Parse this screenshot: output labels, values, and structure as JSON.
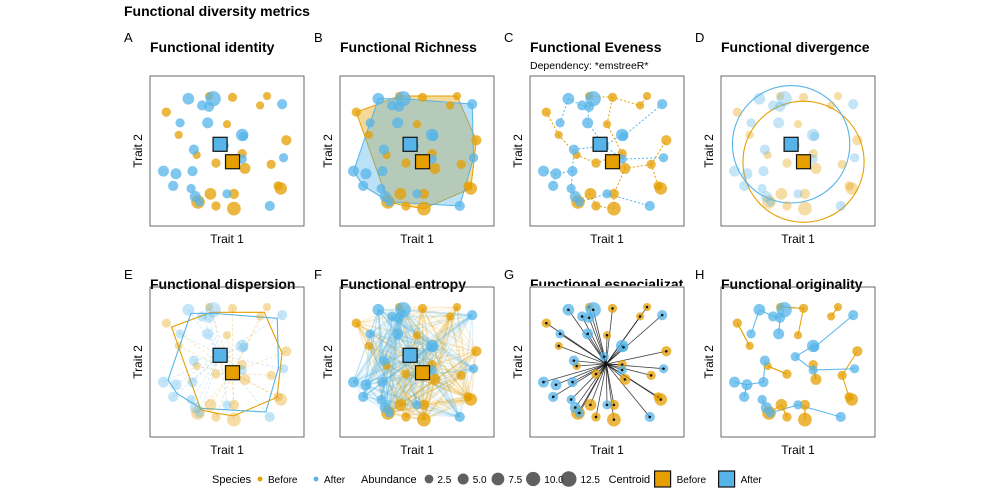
{
  "title": "Functional diversity metrics",
  "colors": {
    "before": "#E69F00",
    "after": "#56B4E9",
    "centroid_before": "#E69F00",
    "centroid_after": "#56B4E9",
    "frame": "#444444",
    "tree_line": "#111111",
    "before_stroke": "#C08400",
    "after_stroke": "#2D7FB8"
  },
  "chart_data": {
    "type": "scatter",
    "shared_axes": {
      "xlabel": "Trait 1",
      "ylabel": "Trait 2",
      "xlim": [
        0,
        10
      ],
      "ylim": [
        0,
        10
      ],
      "grid": false
    },
    "species": {
      "before": [
        {
          "x": 0.6,
          "y": 7.9,
          "a": 3
        },
        {
          "x": 3.7,
          "y": 9.1,
          "a": 2
        },
        {
          "x": 5.0,
          "y": 7.0,
          "a": 2
        },
        {
          "x": 5.4,
          "y": 9.0,
          "a": 3
        },
        {
          "x": 7.4,
          "y": 8.4,
          "a": 2
        },
        {
          "x": 7.9,
          "y": 9.1,
          "a": 2
        },
        {
          "x": 9.3,
          "y": 5.8,
          "a": 4
        },
        {
          "x": 1.5,
          "y": 6.2,
          "a": 2
        },
        {
          "x": 2.8,
          "y": 4.7,
          "a": 2
        },
        {
          "x": 4.2,
          "y": 4.1,
          "a": 3
        },
        {
          "x": 6.1,
          "y": 4.8,
          "a": 3
        },
        {
          "x": 6.3,
          "y": 3.7,
          "a": 5
        },
        {
          "x": 8.2,
          "y": 4.0,
          "a": 3
        },
        {
          "x": 8.7,
          "y": 2.4,
          "a": 3
        },
        {
          "x": 8.9,
          "y": 2.2,
          "a": 7
        },
        {
          "x": 3.8,
          "y": 1.8,
          "a": 6
        },
        {
          "x": 2.9,
          "y": 1.2,
          "a": 9
        },
        {
          "x": 4.2,
          "y": 0.9,
          "a": 3
        },
        {
          "x": 5.5,
          "y": 1.8,
          "a": 4
        },
        {
          "x": 5.5,
          "y": 0.7,
          "a": 9
        }
      ],
      "after": [
        {
          "x": 2.2,
          "y": 8.9,
          "a": 6
        },
        {
          "x": 3.2,
          "y": 8.4,
          "a": 4
        },
        {
          "x": 4.0,
          "y": 8.9,
          "a": 12
        },
        {
          "x": 3.7,
          "y": 8.3,
          "a": 4
        },
        {
          "x": 9.0,
          "y": 8.5,
          "a": 4
        },
        {
          "x": 1.6,
          "y": 7.1,
          "a": 3
        },
        {
          "x": 3.6,
          "y": 7.1,
          "a": 5
        },
        {
          "x": 6.1,
          "y": 6.2,
          "a": 7
        },
        {
          "x": 6.2,
          "y": 6.1,
          "a": 3
        },
        {
          "x": 2.6,
          "y": 5.1,
          "a": 4
        },
        {
          "x": 4.8,
          "y": 5.4,
          "a": 3
        },
        {
          "x": 6.1,
          "y": 4.4,
          "a": 3
        },
        {
          "x": 9.1,
          "y": 4.5,
          "a": 3
        },
        {
          "x": 2.5,
          "y": 3.5,
          "a": 4
        },
        {
          "x": 0.4,
          "y": 3.5,
          "a": 5
        },
        {
          "x": 1.3,
          "y": 3.3,
          "a": 5
        },
        {
          "x": 1.1,
          "y": 2.4,
          "a": 4
        },
        {
          "x": 2.4,
          "y": 2.2,
          "a": 3
        },
        {
          "x": 2.7,
          "y": 1.6,
          "a": 5
        },
        {
          "x": 8.1,
          "y": 0.9,
          "a": 4
        },
        {
          "x": 3.0,
          "y": 1.2,
          "a": 3
        },
        {
          "x": 5.0,
          "y": 1.8,
          "a": 3
        }
      ]
    },
    "centroids": {
      "before": {
        "x": 5.4,
        "y": 4.2
      },
      "after": {
        "x": 4.5,
        "y": 5.5
      }
    },
    "panels": [
      {
        "letter": "A",
        "title": "Functional identity",
        "subtitle": "",
        "type": "scatter"
      },
      {
        "letter": "B",
        "title": "Functional Richness",
        "subtitle": "",
        "type": "convex-hull"
      },
      {
        "letter": "C",
        "title": "Functional Eveness",
        "subtitle": "Dependency: *emstreeR*",
        "type": "minimum-spanning-tree"
      },
      {
        "letter": "D",
        "title": "Functional divergence",
        "subtitle": "",
        "type": "distance-circle"
      },
      {
        "letter": "E",
        "title": "Functional dispersion",
        "subtitle": "",
        "type": "weighted-hull"
      },
      {
        "letter": "F",
        "title": "Functional entropy",
        "subtitle": "",
        "type": "pairwise-links"
      },
      {
        "letter": "G",
        "title": "Functional especialization",
        "subtitle": "",
        "type": "star-from-center"
      },
      {
        "letter": "H",
        "title": "Functional originality",
        "subtitle": "",
        "type": "nearest-neighbour"
      }
    ],
    "legend": {
      "position": "bottom",
      "species_title": "Species",
      "species_items": [
        "Before",
        "After"
      ],
      "abundance_title": "Abundance",
      "abundance_items": [
        "2.5",
        "5.0",
        "7.5",
        "10.0",
        "12.5"
      ],
      "abundance_values": [
        2.5,
        5.0,
        7.5,
        10.0,
        12.5
      ],
      "centroid_title": "Centroid",
      "centroid_items": [
        "Before",
        "After"
      ]
    }
  }
}
